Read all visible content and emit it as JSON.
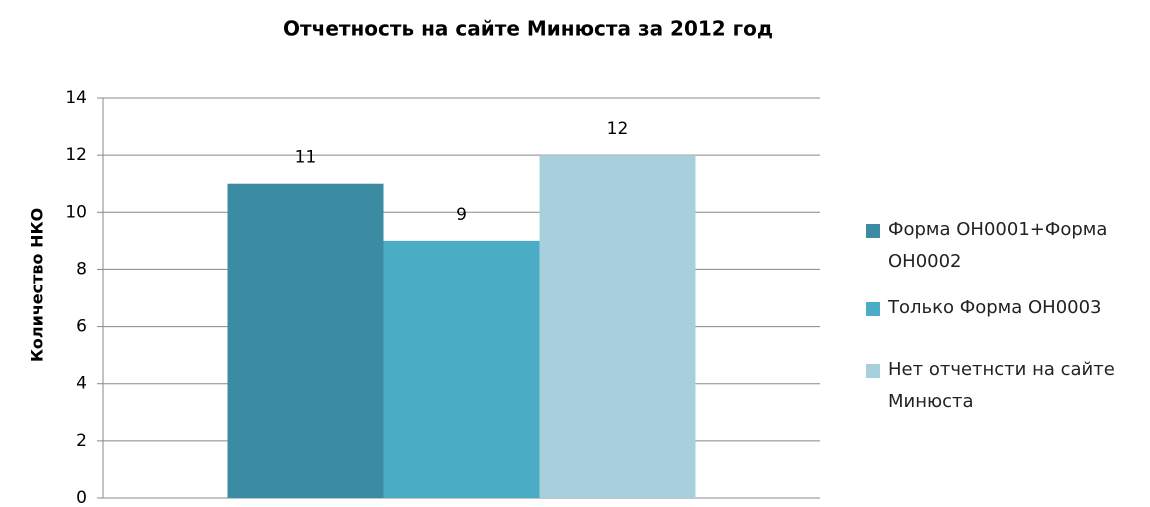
{
  "chart_data": {
    "type": "bar",
    "title": "Отчетность на сайте Минюста за 2012 год",
    "y_label": "Количество НКО",
    "categories": [
      null
    ],
    "series": [
      {
        "name": "Форма ОН0001+Форма ОН0002",
        "color": "#3b8ca3",
        "values": [
          11
        ]
      },
      {
        "name": "Только Форма ОН0003",
        "color": "#4bacc6",
        "values": [
          9
        ]
      },
      {
        "name": "Нет отчетнсти на сайте Минюста",
        "color": "#a8d0dc",
        "values": [
          12
        ]
      }
    ],
    "ylim": [
      0,
      14
    ],
    "yticks": [
      0,
      2,
      4,
      6,
      8,
      10,
      12,
      14
    ],
    "grid": true,
    "legend": "right",
    "data_labels": true
  }
}
